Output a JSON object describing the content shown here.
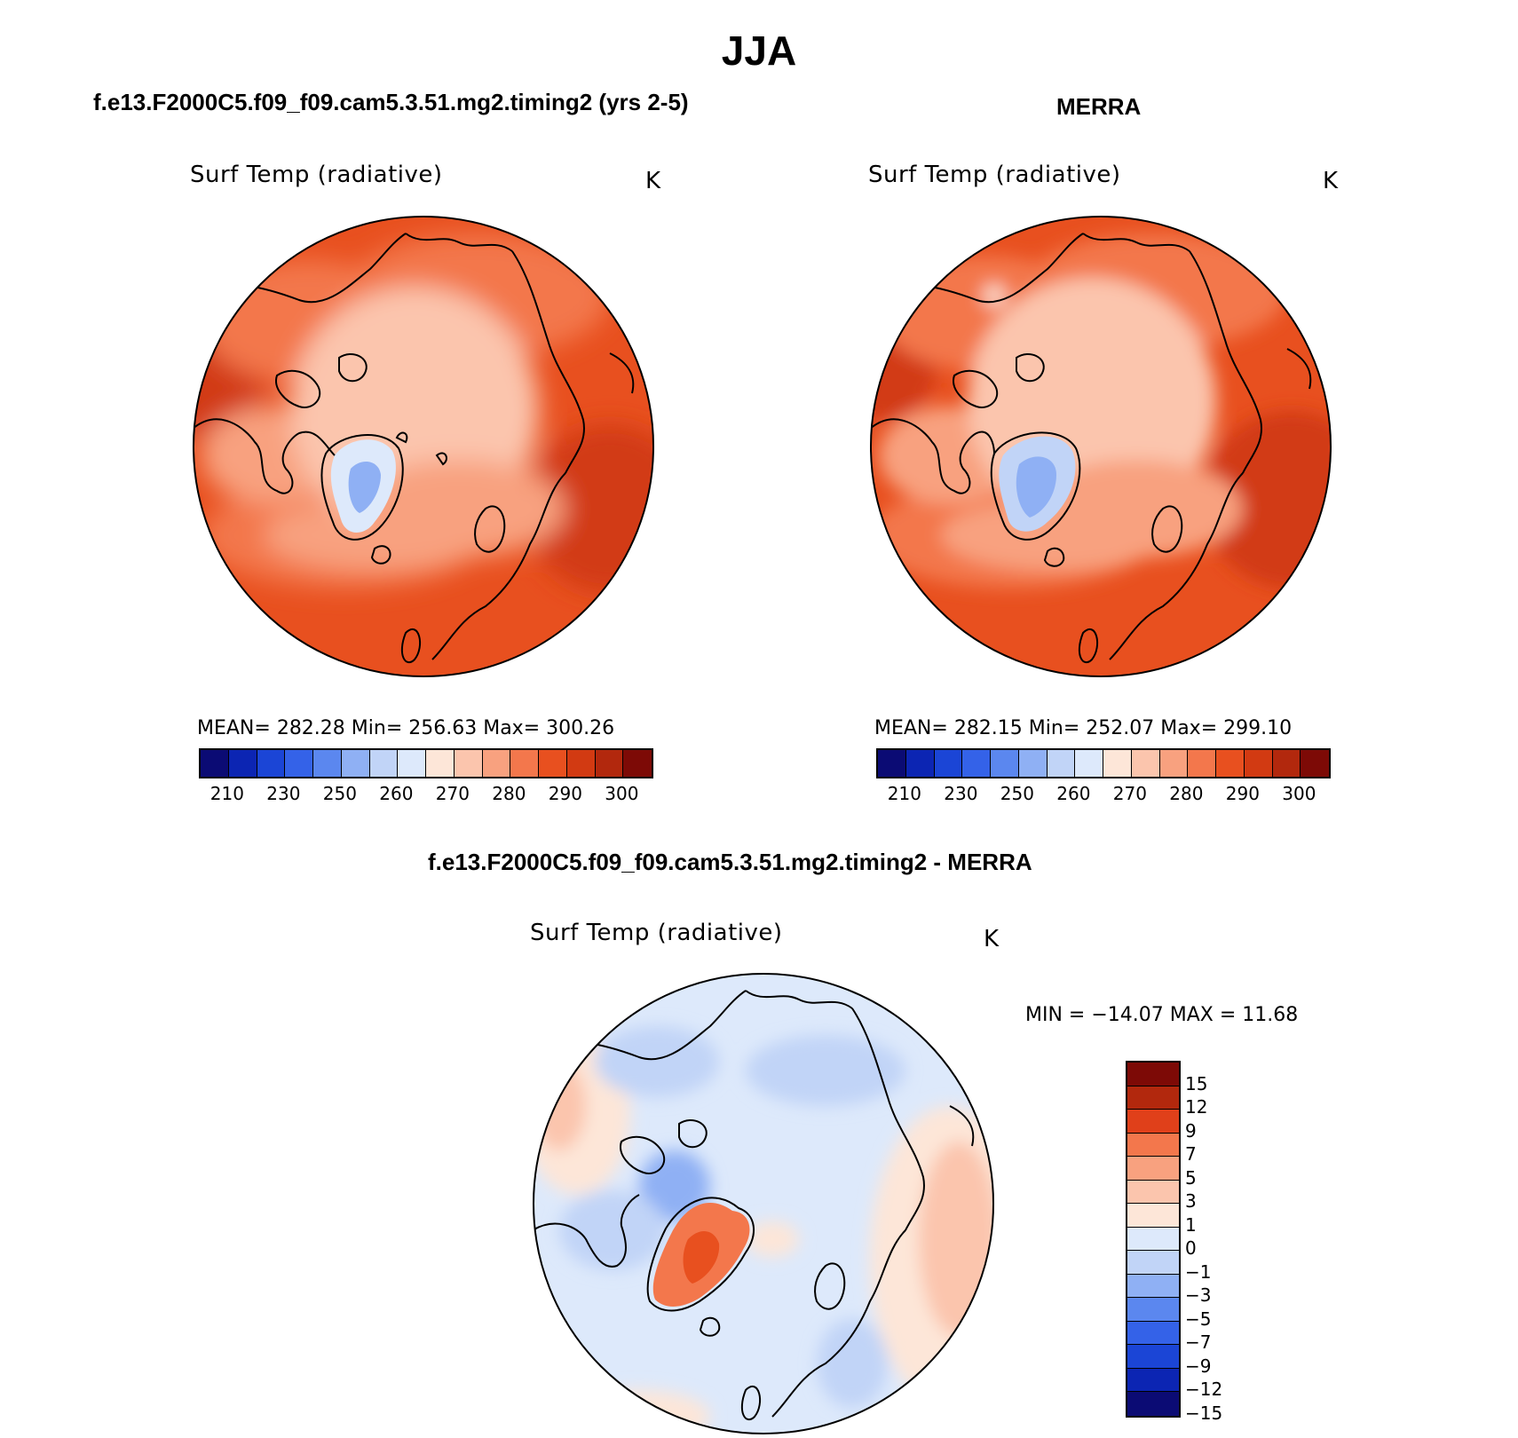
{
  "figure": {
    "title": "JJA",
    "panels": [
      {
        "title": "f.e13.F2000C5.f09_f09.cam5.3.51.mg2.timing2 (yrs 2-5)",
        "variable": "Surf Temp (radiative)",
        "units": "K",
        "stats": "MEAN= 282.28   Min= 256.63   Max= 300.26"
      },
      {
        "title": "MERRA",
        "variable": "Surf Temp (radiative)",
        "units": "K",
        "stats": "MEAN= 282.15   Min= 252.07   Max= 299.10"
      },
      {
        "title": "f.e13.F2000C5.f09_f09.cam5.3.51.mg2.timing2 - MERRA",
        "variable": "Surf Temp (radiative)",
        "units": "K",
        "stats": "MIN = −14.07  MAX =   11.68"
      }
    ],
    "abs_colorbar": {
      "colors": [
        "#0b0b74",
        "#0c25b3",
        "#1b45d6",
        "#3462e8",
        "#5b87ef",
        "#8fb0f4",
        "#c1d4f7",
        "#dde9fb",
        "#fde6d8",
        "#fbc5ad",
        "#f8a17f",
        "#f3774c",
        "#e8501f",
        "#d23a12",
        "#b2280d",
        "#7d0a06"
      ],
      "tick_labels": [
        "210",
        "230",
        "250",
        "260",
        "270",
        "280",
        "290",
        "300"
      ]
    },
    "diff_colorbar": {
      "colors": [
        "#7d0a06",
        "#b2280d",
        "#e0401a",
        "#f3774c",
        "#f8a17f",
        "#fbc5ad",
        "#fde6d8",
        "#dde9fb",
        "#c1d4f7",
        "#8fb0f4",
        "#5b87ef",
        "#3462e8",
        "#1b45d6",
        "#0c25b3",
        "#0b0b74"
      ],
      "tick_labels": [
        "15",
        "12",
        "9",
        "7",
        "5",
        "3",
        "1",
        "0",
        "−1",
        "−3",
        "−5",
        "−7",
        "−9",
        "−12",
        "−15"
      ]
    },
    "map_colors": {
      "land_outline": "#000000",
      "model_ocean": "#e8501f",
      "model_arctic": "#fbc5ad",
      "model_greenland": "#8fb0f4",
      "diff_base": "#dde9fb",
      "diff_greenland": "#f3774c"
    }
  }
}
